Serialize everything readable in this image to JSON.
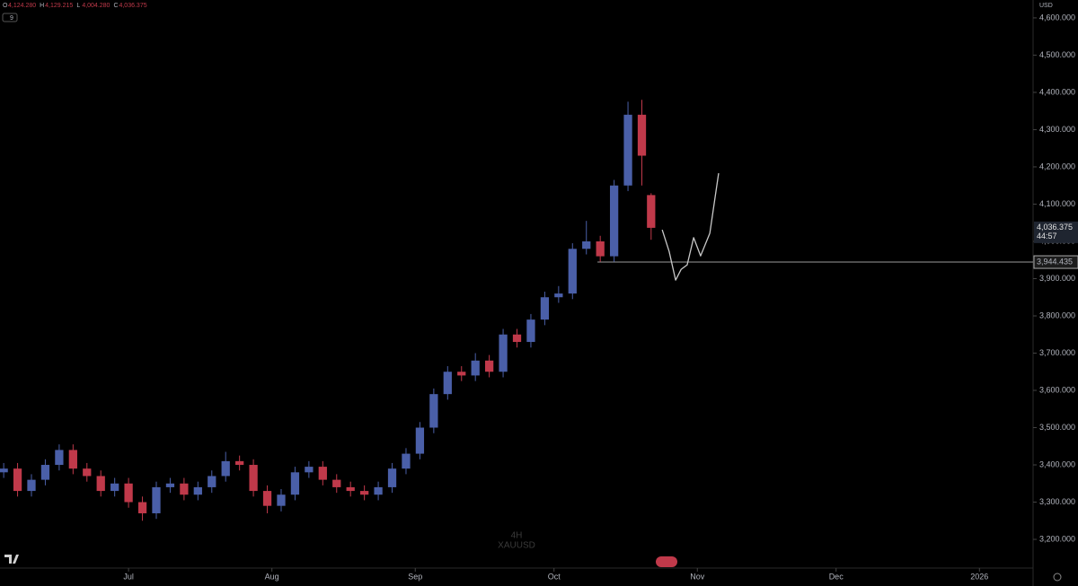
{
  "header": {
    "ohlc": [
      {
        "label": "O",
        "value": "4,124.280"
      },
      {
        "label": "H",
        "value": "4,129.215"
      },
      {
        "label": "L",
        "value": "4,004.280"
      },
      {
        "label": "C",
        "value": "4,036.375"
      }
    ],
    "indicator": "9"
  },
  "currency": "USD",
  "watermark": {
    "interval": "4H",
    "symbol": "XAUUSD"
  },
  "chart_data": {
    "type": "candlestick",
    "x": [
      3,
      6,
      9,
      12,
      15,
      18,
      21,
      24,
      27,
      30,
      33,
      36,
      39,
      42,
      45,
      48,
      51,
      54,
      57,
      60,
      63,
      66,
      69,
      72,
      75,
      78,
      81,
      84,
      87,
      90,
      93,
      96,
      99,
      102,
      105,
      108,
      111,
      114,
      117,
      120,
      123,
      126,
      129,
      132,
      135,
      138,
      141,
      143
    ],
    "open": [
      3380,
      3390,
      3330,
      3360,
      3400,
      3440,
      3390,
      3370,
      3330,
      3350,
      3300,
      3270,
      3340,
      3350,
      3320,
      3340,
      3370,
      3410,
      3400,
      3330,
      3290,
      3320,
      3380,
      3395,
      3360,
      3340,
      3330,
      3320,
      3340,
      3390,
      3430,
      3500,
      3590,
      3650,
      3640,
      3680,
      3650,
      3750,
      3730,
      3790,
      3850,
      3860,
      3980,
      4000,
      3960,
      4150,
      4340,
      4124.28
    ],
    "high": [
      3405,
      3405,
      3375,
      3415,
      3455,
      3455,
      3405,
      3385,
      3365,
      3365,
      3315,
      3355,
      3365,
      3365,
      3355,
      3385,
      3435,
      3425,
      3415,
      3345,
      3335,
      3395,
      3410,
      3410,
      3375,
      3355,
      3345,
      3355,
      3405,
      3445,
      3515,
      3605,
      3665,
      3665,
      3700,
      3695,
      3765,
      3765,
      3805,
      3865,
      3880,
      3995,
      4055,
      4015,
      4165,
      4375,
      4380,
      4129.215
    ],
    "low": [
      3365,
      3315,
      3315,
      3345,
      3385,
      3375,
      3355,
      3315,
      3315,
      3285,
      3250,
      3255,
      3325,
      3305,
      3305,
      3325,
      3355,
      3385,
      3315,
      3270,
      3275,
      3305,
      3365,
      3345,
      3325,
      3315,
      3305,
      3305,
      3325,
      3375,
      3415,
      3485,
      3575,
      3625,
      3625,
      3635,
      3635,
      3715,
      3715,
      3775,
      3835,
      3845,
      3965,
      3945,
      3945,
      4135,
      4150,
      4004.28
    ],
    "close": [
      3390,
      3330,
      3360,
      3400,
      3440,
      3390,
      3370,
      3330,
      3350,
      3300,
      3270,
      3340,
      3350,
      3320,
      3340,
      3370,
      3410,
      3400,
      3330,
      3290,
      3320,
      3380,
      3395,
      3360,
      3340,
      3330,
      3320,
      3340,
      3390,
      3430,
      3500,
      3590,
      3650,
      3640,
      3680,
      3650,
      3750,
      3730,
      3790,
      3850,
      3860,
      3980,
      4000,
      3960,
      4150,
      4340,
      4230,
      4036.375
    ],
    "up_color": "#4a5fa8",
    "down_color": "#c0394a",
    "projection": {
      "color": "#c8c8c8",
      "x": [
        145.4,
        146.9,
        148.3,
        149.5,
        150.8,
        152.2,
        153.7,
        155.7,
        157.6
      ],
      "values": [
        4031,
        3973,
        3896,
        3925,
        3937,
        4010,
        3961,
        4022,
        4183
      ]
    },
    "level": {
      "value": 3944.435,
      "label": "3,944.435",
      "x_start": 131.4,
      "color": "#9a9a9a"
    },
    "last_price": {
      "value": 4036.375,
      "label": "4,036.375",
      "countdown": "44:57"
    },
    "xlim": [
      2.2,
      225.6
    ],
    "xticks": [
      {
        "value": 30,
        "label": "Jul"
      },
      {
        "value": 61,
        "label": "Aug"
      },
      {
        "value": 92,
        "label": "Sep"
      },
      {
        "value": 122,
        "label": "Oct"
      },
      {
        "value": 153,
        "label": "Nov"
      },
      {
        "value": 183,
        "label": "Dec"
      },
      {
        "value": 214,
        "label": "2026"
      }
    ],
    "ylim": [
      3123,
      4648
    ],
    "yticks": [
      {
        "value": 3200,
        "label": "3,200.000"
      },
      {
        "value": 3300,
        "label": "3,300.000"
      },
      {
        "value": 3400,
        "label": "3,400.000"
      },
      {
        "value": 3500,
        "label": "3,500.000"
      },
      {
        "value": 3600,
        "label": "3,600.000"
      },
      {
        "value": 3700,
        "label": "3,700.000"
      },
      {
        "value": 3800,
        "label": "3,800.000"
      },
      {
        "value": 3900,
        "label": "3,900.000"
      },
      {
        "value": 4000,
        "label": "4,000.000"
      },
      {
        "value": 4100,
        "label": "4,100.000"
      },
      {
        "value": 4200,
        "label": "4,200.000"
      },
      {
        "value": 4300,
        "label": "4,300.000"
      },
      {
        "value": 4400,
        "label": "4,400.000"
      },
      {
        "value": 4500,
        "label": "4,500.000"
      },
      {
        "value": 4600,
        "label": "4,600.000"
      }
    ]
  }
}
